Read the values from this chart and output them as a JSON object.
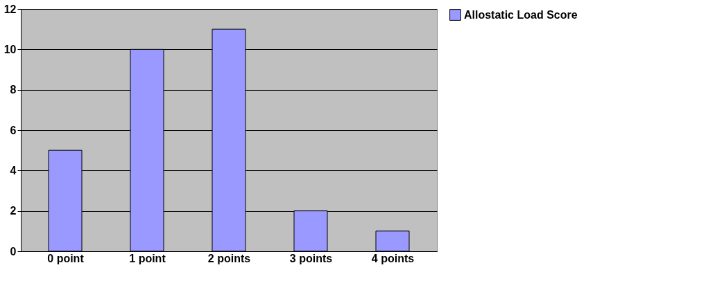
{
  "chart_data": {
    "type": "bar",
    "categories": [
      "0 point",
      "1 point",
      "2 points",
      "3 points",
      "4 points"
    ],
    "series": [
      {
        "name": "Allostatic Load Score",
        "color": "#9999ff",
        "values": [
          5,
          10,
          11,
          2,
          1
        ]
      }
    ],
    "ylim": [
      0,
      12
    ],
    "yticks": [
      0,
      2,
      4,
      6,
      8,
      10,
      12
    ],
    "grid": "y",
    "legend": "right"
  }
}
